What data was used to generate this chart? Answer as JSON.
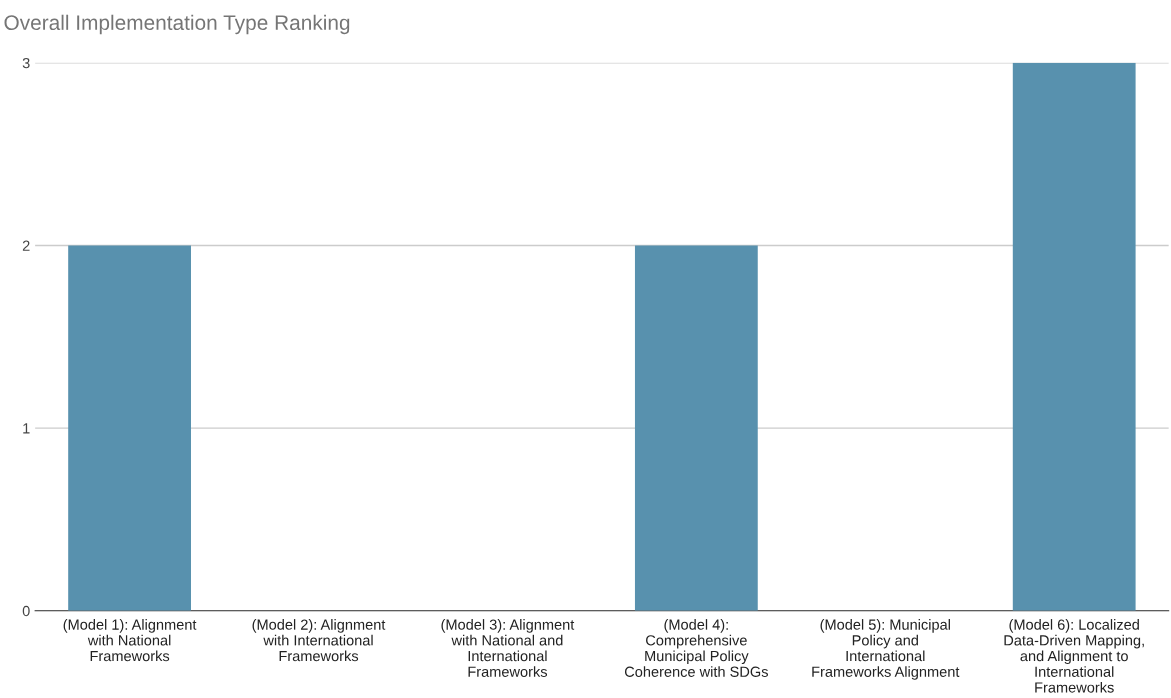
{
  "chart_data": {
    "type": "bar",
    "title": "Overall Implementation Type Ranking",
    "categories": [
      "(Model 1): Alignment with National Frameworks",
      "(Model 2): Alignment with International Frameworks",
      "(Model 3): Alignment with National and International Frameworks",
      "(Model 4): Comprehensive Municipal Policy Coherence with SDGs",
      "(Model 5): Municipal Policy and International Frameworks Alignment",
      "(Model 6): Localized Data-Driven Mapping, and Alignment to International Frameworks"
    ],
    "values": [
      2,
      0,
      0,
      2,
      0,
      3
    ],
    "color": "#5891ae",
    "ylim": [
      0,
      3
    ],
    "yticks": [
      0,
      1,
      2,
      3
    ],
    "grid": "y"
  }
}
